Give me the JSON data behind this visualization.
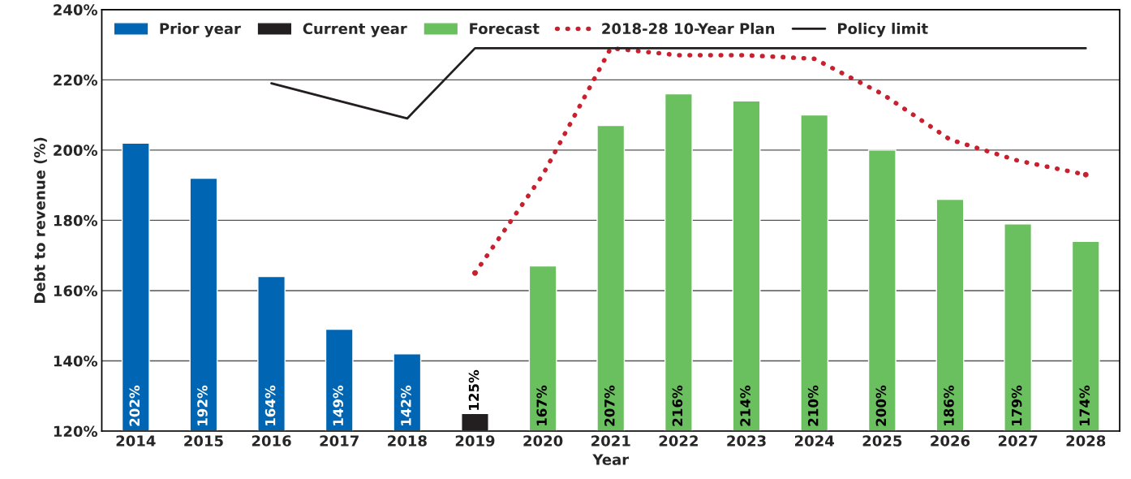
{
  "chart_data": {
    "type": "bar",
    "xlabel": "Year",
    "ylabel": "Debt to revenue (%)",
    "categories": [
      "2014",
      "2015",
      "2016",
      "2017",
      "2018",
      "2019",
      "2020",
      "2021",
      "2022",
      "2023",
      "2024",
      "2025",
      "2026",
      "2027",
      "2028"
    ],
    "series": [
      {
        "name": "Prior year",
        "color": "#0066b3",
        "values": [
          202,
          192,
          164,
          149,
          142,
          null,
          null,
          null,
          null,
          null,
          null,
          null,
          null,
          null,
          null
        ],
        "value_labels": [
          "202%",
          "192%",
          "164%",
          "149%",
          "142%",
          null,
          null,
          null,
          null,
          null,
          null,
          null,
          null,
          null,
          null
        ]
      },
      {
        "name": "Current year",
        "color": "#231f20",
        "values": [
          null,
          null,
          null,
          null,
          null,
          125,
          null,
          null,
          null,
          null,
          null,
          null,
          null,
          null,
          null
        ],
        "value_labels": [
          null,
          null,
          null,
          null,
          null,
          "125%",
          null,
          null,
          null,
          null,
          null,
          null,
          null,
          null,
          null
        ]
      },
      {
        "name": "Forecast",
        "color": "#6abf5e",
        "values": [
          null,
          null,
          null,
          null,
          null,
          null,
          167,
          207,
          216,
          214,
          210,
          200,
          186,
          179,
          174
        ],
        "value_labels": [
          null,
          null,
          null,
          null,
          null,
          null,
          "167%",
          "207%",
          "216%",
          "214%",
          "210%",
          "200%",
          "186%",
          "179%",
          "174%"
        ]
      },
      {
        "name": "2018-28 10-Year Plan",
        "type": "line",
        "color": "#c8202f",
        "line_style": "dotted",
        "values": [
          null,
          null,
          null,
          null,
          null,
          165,
          193,
          229,
          227,
          227,
          226,
          216,
          203,
          197,
          193
        ]
      },
      {
        "name": "Policy limit",
        "type": "line",
        "color": "#231f20",
        "line_style": "solid",
        "values": [
          null,
          null,
          219,
          214,
          209,
          229,
          229,
          229,
          229,
          229,
          229,
          229,
          229,
          229,
          229
        ]
      }
    ],
    "ylim": [
      120,
      240
    ],
    "yticks": [
      {
        "value": 120,
        "label": "120%"
      },
      {
        "value": 140,
        "label": "140%"
      },
      {
        "value": 160,
        "label": "160%"
      },
      {
        "value": 180,
        "label": "180%"
      },
      {
        "value": 200,
        "label": "200%"
      },
      {
        "value": 220,
        "label": "220%"
      },
      {
        "value": 240,
        "label": "240%"
      }
    ],
    "grid": "y",
    "legend": "top left"
  }
}
